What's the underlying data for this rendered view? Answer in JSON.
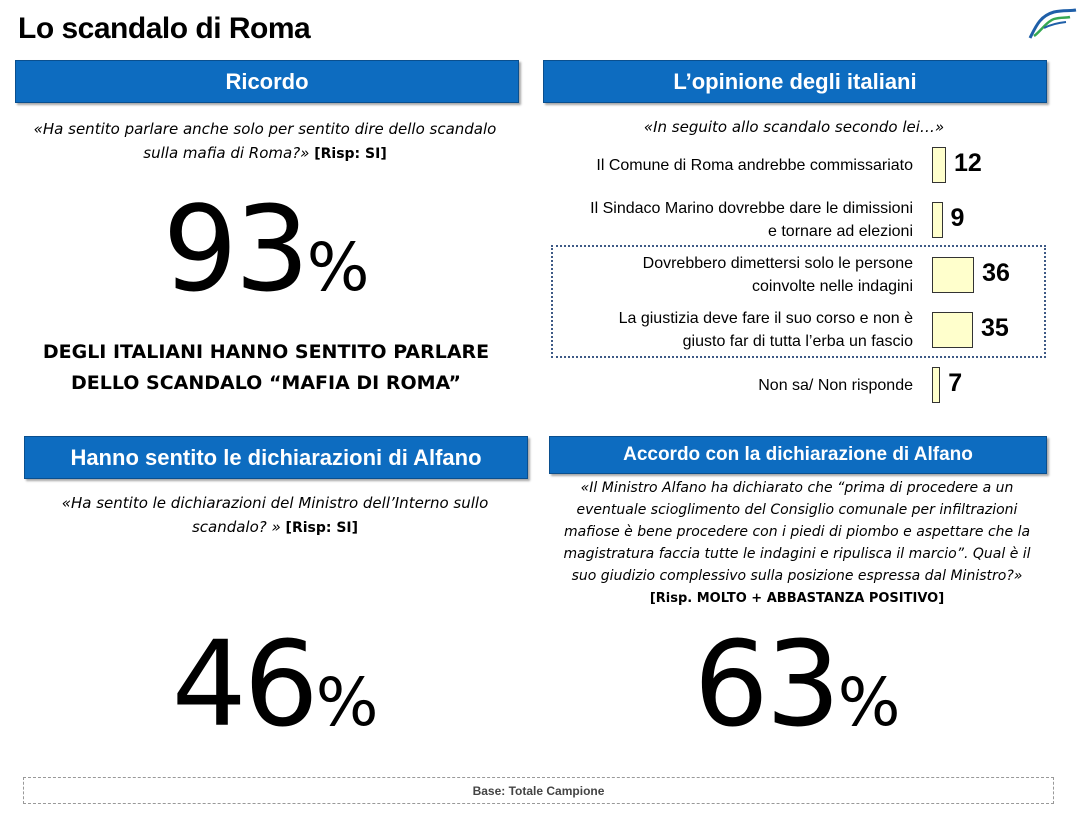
{
  "page_title": "Lo scandalo di Roma",
  "colors": {
    "header_bg": "#0d6cc0",
    "bar_fill": "#ffffcc",
    "dotted_border": "#3e5a86"
  },
  "logo_icon": "stylized-f-logo-icon",
  "ricordo": {
    "header": "Ricordo",
    "question": "«Ha sentito parlare anche solo per sentito dire dello scandalo sulla mafia di Roma?»",
    "risp": "[Risp: SI]",
    "value": "93",
    "pct": "%",
    "caption_line1": "DEGLI ITALIANI HANNO SENTITO PARLARE",
    "caption_line2": "DELLO SCANDALO “MAFIA DI ROMA”"
  },
  "opinione": {
    "header": "L’opinione degli italiani",
    "question": "«In seguito allo scandalo secondo lei…»"
  },
  "alfano_sentito": {
    "header": "Hanno sentito le dichiarazioni di Alfano",
    "question": "«Ha sentito le dichiarazioni del Ministro dell’Interno sullo scandalo? »",
    "risp": "[Risp: SI]",
    "value": "46",
    "pct": "%"
  },
  "alfano_accordo": {
    "header": "Accordo con la dichiarazione di Alfano",
    "question": "«Il Ministro Alfano ha dichiarato che “prima di procedere a un eventuale scioglimento del Consiglio comunale per infiltrazioni mafiose è bene procedere con i piedi di piombo e aspettare che la magistratura faccia tutte le indagini e ripulisca il marcio”. Qual è il suo giudizio complessivo sulla posizione espressa dal Ministro?»",
    "risp": "[Risp. MOLTO + ABBASTANZA POSITIVO]",
    "value": "63",
    "pct": "%"
  },
  "footer": "Base: Totale Campione",
  "chart_data": {
    "type": "bar",
    "orientation": "horizontal",
    "categories": [
      "Il Comune di Roma andrebbe commissariato",
      "Il Sindaco Marino dovrebbe dare le dimissioni e tornare ad elezioni",
      "Dovrebbero dimettersi solo le persone coinvolte nelle indagini",
      "La giustizia deve  fare il suo corso e non è giusto far di tutta l’erba un fascio",
      "Non sa/ Non risponde"
    ],
    "label_lines": [
      [
        "Il Comune di Roma andrebbe commissariato"
      ],
      [
        "Il Sindaco Marino dovrebbe dare le dimissioni",
        "e tornare ad elezioni"
      ],
      [
        "Dovrebbero dimettersi solo le persone",
        "coinvolte nelle indagini"
      ],
      [
        "La giustizia deve  fare il suo corso e non è",
        "giusto far di tutta l’erba un fascio"
      ],
      [
        "Non sa/ Non risponde"
      ]
    ],
    "values": [
      12,
      9,
      36,
      35,
      7
    ],
    "highlighted": [
      2,
      3
    ]
  }
}
